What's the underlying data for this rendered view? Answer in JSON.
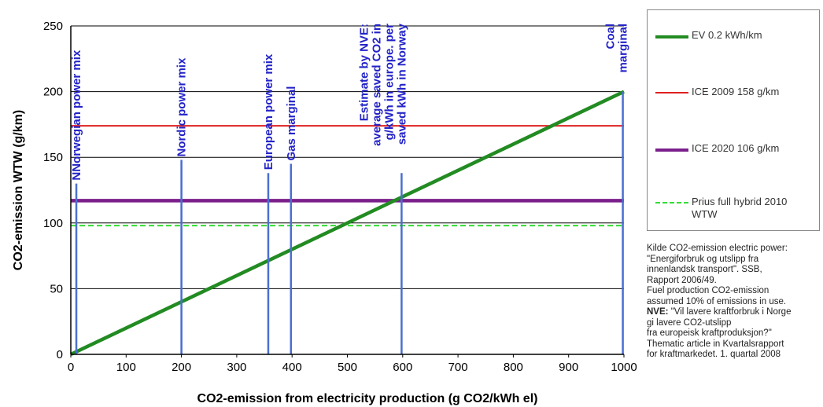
{
  "chart_data": {
    "type": "line",
    "xlabel": "CO2-emission from electricity production (g CO2/kWh el)",
    "ylabel": "CO2-emission WTW (g/km)",
    "xlim": [
      0,
      1000
    ],
    "ylim": [
      0,
      250
    ],
    "x_ticks": [
      "0",
      "100",
      "200",
      "300",
      "400",
      "500",
      "600",
      "700",
      "800",
      "900",
      "1000"
    ],
    "y_ticks": [
      "0",
      "50",
      "100",
      "150",
      "200",
      "250"
    ],
    "grid": "horizontal",
    "legend_position": "right",
    "series": [
      {
        "name": "EV 0.2 kWh/km",
        "x": [
          0,
          1000
        ],
        "y": [
          0,
          200
        ],
        "color": "#228b22",
        "style": "solid"
      },
      {
        "name": "ICE 2009 158 g/km",
        "x": [
          0,
          1000
        ],
        "y": [
          174,
          174
        ],
        "color": "#e02020",
        "style": "solid"
      },
      {
        "name": "ICE 2020 106 g/km",
        "x": [
          0,
          1000
        ],
        "y": [
          117,
          117
        ],
        "color": "#7b1f8c",
        "style": "solid"
      },
      {
        "name": "Prius full hybrid 2010 WTW",
        "x": [
          0,
          1000
        ],
        "y": [
          98,
          98
        ],
        "color": "#33dd33",
        "style": "dashed"
      }
    ],
    "markers": [
      {
        "x": 10,
        "top": 130,
        "lines": [
          "NNorwegian power mix"
        ]
      },
      {
        "x": 200,
        "top": 148,
        "lines": [
          "Nordic power mix"
        ]
      },
      {
        "x": 357,
        "top": 138,
        "lines": [
          "European power mix"
        ]
      },
      {
        "x": 398,
        "top": 145,
        "lines": [
          "Gas marginal"
        ]
      },
      {
        "x": 598,
        "top": 138,
        "lines": [
          "Estimate by NVE:",
          "average saved CO2 in",
          "g/kWh in europe. per",
          "saved kWh in Norway"
        ]
      },
      {
        "x": 998,
        "top": 200,
        "lines": [
          "Coal",
          "marginal"
        ]
      }
    ]
  },
  "source_note": {
    "lines": [
      "Kilde CO2-emission electric power:",
      "\"Energiforbruk og utslipp fra",
      "innenlandsk transport\". SSB,",
      "Rapport 2006/49.",
      "Fuel production CO2-emission",
      "assumed 10% of emissions in use.",
      "\"Vil lavere kraftforbruk i Norge",
      "gi lavere CO2-utslipp",
      "fra europeisk kraftproduksjon?\"",
      "Thematic article in Kvartalsrapport",
      "for kraftmarkedet. 1. quartal 2008"
    ],
    "nve_prefix": "NVE:"
  },
  "colors": {
    "marker": "#4a6fd0",
    "grid": "#000000"
  }
}
